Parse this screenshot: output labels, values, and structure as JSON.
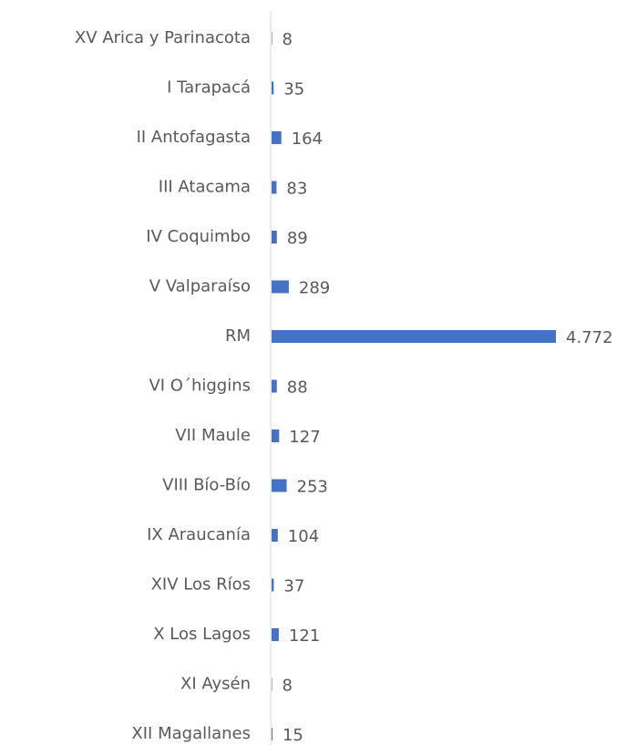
{
  "chart_data": {
    "type": "barh",
    "categories": [
      "XV Arica y Parinacota",
      "I Tarapacá",
      "II Antofagasta",
      "III Atacama",
      "IV Coquimbo",
      "V Valparaíso",
      "RM",
      "VI O´higgins",
      "VII Maule",
      "VIII Bío-Bío",
      "IX Araucanía",
      "XIV Los Ríos",
      "X Los Lagos",
      "XI Aysén",
      "XII Magallanes"
    ],
    "values": [
      8,
      35,
      164,
      83,
      89,
      289,
      4772,
      88,
      127,
      253,
      104,
      37,
      121,
      8,
      15
    ],
    "value_labels": [
      "8",
      "35",
      "164",
      "83",
      "89",
      "289",
      "4.772",
      "88",
      "127",
      "253",
      "104",
      "37",
      "121",
      "8",
      "15"
    ],
    "color": "#4472c4"
  }
}
